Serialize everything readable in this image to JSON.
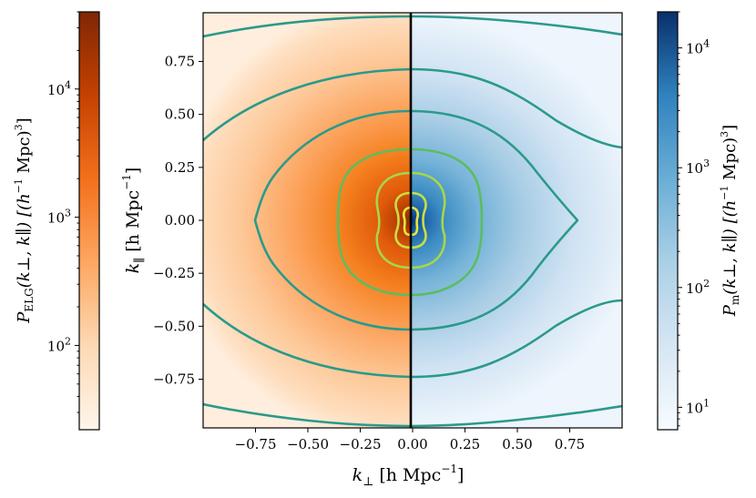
{
  "chart_data": [
    {
      "type": "heatmap",
      "description_printed": "",
      "xlabel": "k⊥ [h Mpc⁻¹]",
      "ylabel": "k∥ [h Mpc⁻¹]",
      "xlim": [
        -1.0,
        1.0
      ],
      "ylim": [
        -0.98,
        0.98
      ],
      "x_ticks": [
        -0.75,
        -0.5,
        -0.25,
        0.0,
        0.25,
        0.5,
        0.75
      ],
      "x_tick_labels": [
        "−0.75",
        "−0.50",
        "−0.25",
        "0.00",
        "0.25",
        "0.50",
        "0.75"
      ],
      "y_ticks": [
        0.75,
        0.5,
        0.25,
        0.0,
        -0.25,
        -0.5,
        -0.75
      ],
      "y_tick_labels": [
        "0.75",
        "0.50",
        "0.25",
        "0.00",
        "−0.25",
        "−0.50",
        "−0.75"
      ],
      "grid": false,
      "left_half": {
        "field": "P_ELG(k⊥, k∥)",
        "colormap": "Oranges",
        "color_low": "#fff5eb",
        "color_high": "#7f2704"
      },
      "right_half": {
        "field": "P_m(k⊥, k∥)",
        "colormap": "Blues",
        "color_low": "#f7fbff",
        "color_high": "#08306b"
      },
      "divider_x": 0.0,
      "contour_levels_half_width_at_k_par_0": [
        0.79,
        0.48,
        0.15,
        0.05,
        0.015
      ],
      "contour_colors": [
        "#2a9a8a",
        "#36a77e",
        "#5cbd5f",
        "#a7d648",
        "#dfe63a"
      ]
    },
    {
      "type": "colorbar",
      "position": "left",
      "label": "P_ELG(k⊥, k∥) [(h⁻¹ Mpc)³]",
      "scale": "log",
      "range": [
        22,
        40000
      ],
      "ticks": [
        100,
        1000,
        10000
      ],
      "tick_labels_base": [
        "10",
        "10",
        "10"
      ],
      "tick_labels_exp": [
        "2",
        "3",
        "4"
      ],
      "colormap": "Oranges"
    },
    {
      "type": "colorbar",
      "position": "right",
      "label": "P_m(k⊥, k∥) [(h⁻¹ Mpc)³]",
      "scale": "log",
      "range": [
        6.5,
        20000
      ],
      "ticks": [
        10,
        100,
        1000,
        10000
      ],
      "tick_labels_base": [
        "10",
        "10",
        "10",
        "10"
      ],
      "tick_labels_exp": [
        "1",
        "2",
        "3",
        "4"
      ],
      "colormap": "Blues"
    }
  ],
  "labels": {
    "xlabel_main": "k",
    "xlabel_sub": "⊥",
    "xlabel_unit": " [h Mpc",
    "xlabel_exp": "−1",
    "xlabel_close": "]",
    "ylabel_main": "k",
    "ylabel_sub": "∥",
    "ylabel_unit": " [h Mpc",
    "ylabel_exp": "−1",
    "ylabel_close": "]",
    "left_cbar_P": "P",
    "left_cbar_sub": "ELG",
    "left_cbar_args": "(k⊥, k∥) [(h",
    "left_cbar_exp1": "−1",
    "left_cbar_mid": " Mpc)",
    "left_cbar_exp2": "3",
    "left_cbar_close": "]",
    "right_cbar_P": "P",
    "right_cbar_sub": "m",
    "right_cbar_args": "(k⊥, k∥) [(h",
    "right_cbar_exp1": "−1",
    "right_cbar_mid": " Mpc)",
    "right_cbar_exp2": "3",
    "right_cbar_close": "]"
  }
}
